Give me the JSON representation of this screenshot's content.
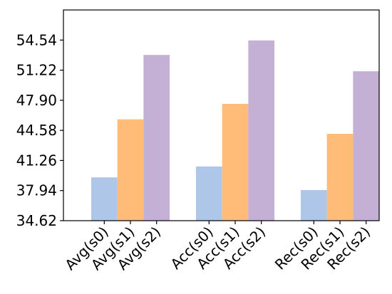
{
  "chart_data": {
    "type": "bar",
    "title": "",
    "xlabel": "",
    "ylabel": "",
    "ylim": [
      34.62,
      57.86
    ],
    "grid": false,
    "legend": "none",
    "yticks": [
      34.62,
      37.94,
      41.26,
      44.58,
      47.9,
      51.22,
      54.54
    ],
    "ytick_labels": [
      "34.62",
      "37.94",
      "41.26",
      "44.58",
      "47.90",
      "51.22",
      "54.54"
    ],
    "groups": [
      {
        "bars": [
          {
            "label": "Avg(s0)",
            "value": 39.4,
            "color": "#aec7e8"
          },
          {
            "label": "Avg(s1)",
            "value": 45.8,
            "color": "#ffbb78"
          },
          {
            "label": "Avg(s2)",
            "value": 52.9,
            "color": "#c5b0d5"
          }
        ]
      },
      {
        "bars": [
          {
            "label": "Acc(s0)",
            "value": 40.6,
            "color": "#aec7e8"
          },
          {
            "label": "Acc(s1)",
            "value": 47.5,
            "color": "#ffbb78"
          },
          {
            "label": "Acc(s2)",
            "value": 54.5,
            "color": "#c5b0d5"
          }
        ]
      },
      {
        "bars": [
          {
            "label": "Rec(s0)",
            "value": 38.0,
            "color": "#aec7e8"
          },
          {
            "label": "Rec(s1)",
            "value": 44.2,
            "color": "#ffbb78"
          },
          {
            "label": "Rec(s2)",
            "value": 51.1,
            "color": "#c5b0d5"
          }
        ]
      }
    ]
  }
}
